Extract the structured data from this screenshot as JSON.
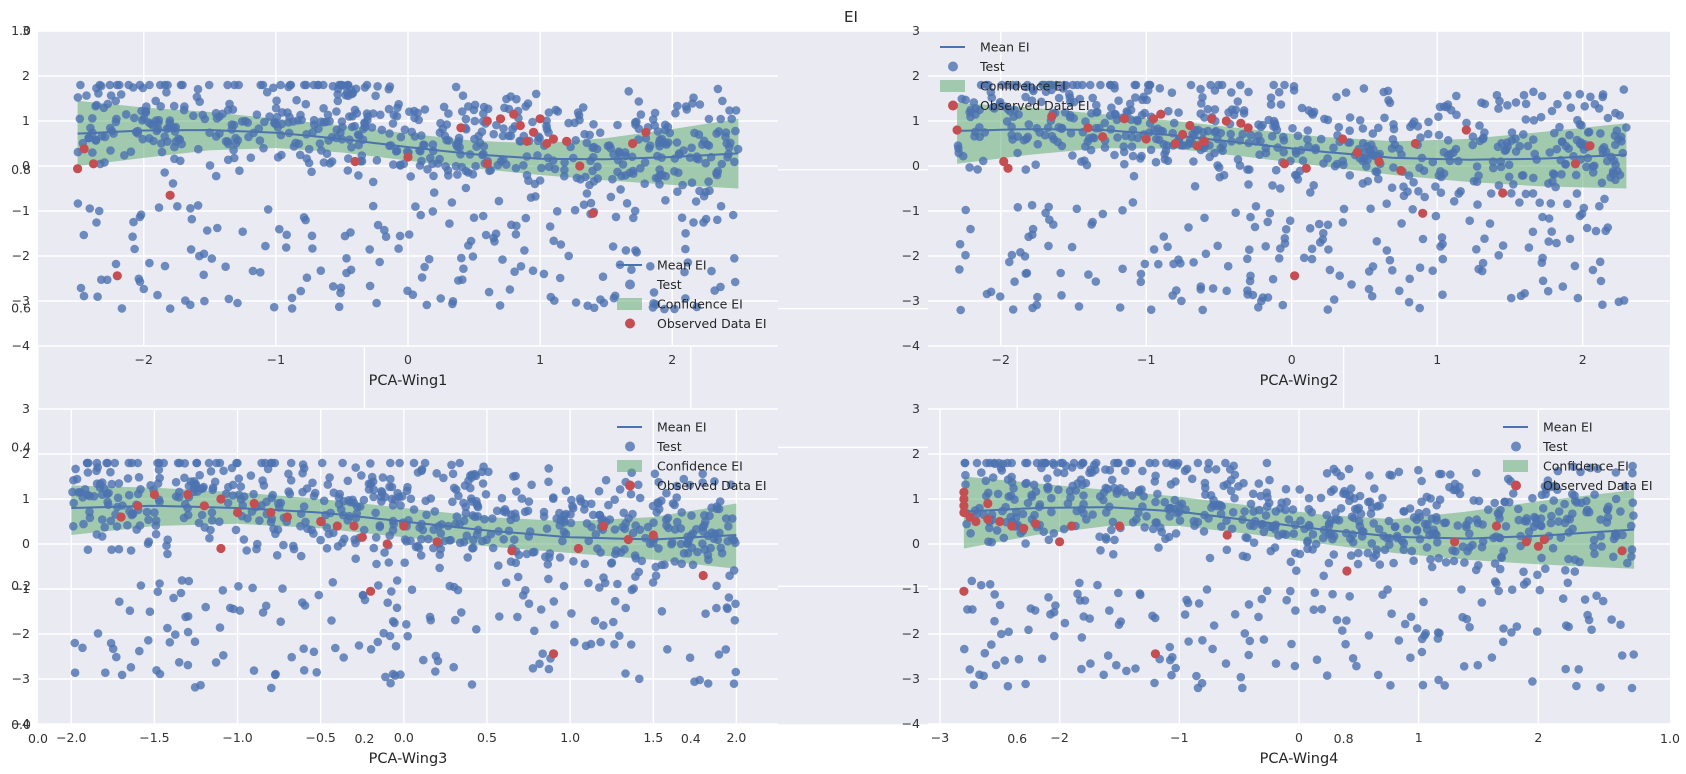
{
  "figure": {
    "title": "EI",
    "legend": [
      "Mean EI",
      "Test",
      "Confidence EI",
      "Observed Data EI"
    ],
    "colors": {
      "background": "#eaeaf2",
      "grid": "#ffffff",
      "mean_line": "#4c72b0",
      "test_points": "#4c72b0",
      "confidence": "#55a868",
      "observed": "#c44e52"
    },
    "background_axes": {
      "x_ticks": [
        "0.0",
        "0.2",
        "0.4",
        "0.6",
        "0.8",
        "1.0"
      ],
      "y_ticks": [
        "0.0",
        "0.2",
        "0.4",
        "0.6",
        "0.8",
        "1.0"
      ]
    }
  },
  "chart_data": [
    {
      "type": "scatter",
      "xlabel": "PCA-Wing1",
      "xlim": [
        -2.8,
        2.8
      ],
      "ylim": [
        -4,
        3
      ],
      "xticks": [
        -2,
        -1,
        0,
        1,
        2
      ],
      "yticks": [
        -4,
        -3,
        -2,
        -1,
        0,
        1,
        2,
        3
      ],
      "legend_position": "lower-right",
      "mean_x": [
        -2.5,
        -2.0,
        -1.5,
        -1.0,
        -0.5,
        0.0,
        0.5,
        1.0,
        1.5,
        2.0,
        2.5
      ],
      "mean_y": [
        0.72,
        0.79,
        0.8,
        0.74,
        0.6,
        0.42,
        0.26,
        0.16,
        0.15,
        0.2,
        0.28
      ],
      "band_lower": [
        0.0,
        0.18,
        0.35,
        0.4,
        0.3,
        0.12,
        -0.05,
        -0.2,
        -0.32,
        -0.42,
        -0.5
      ],
      "band_upper": [
        1.45,
        1.3,
        1.2,
        1.05,
        0.9,
        0.72,
        0.56,
        0.5,
        0.62,
        0.82,
        1.05
      ],
      "test_points": 750,
      "observed": [
        [
          -2.5,
          -0.06
        ],
        [
          -2.45,
          0.38
        ],
        [
          -2.38,
          0.05
        ],
        [
          -2.2,
          -2.44
        ],
        [
          -1.8,
          -0.65
        ],
        [
          -0.4,
          0.1
        ],
        [
          0.0,
          0.2
        ],
        [
          0.4,
          0.85
        ],
        [
          0.6,
          0.05
        ],
        [
          0.6,
          1.0
        ],
        [
          0.7,
          1.05
        ],
        [
          0.8,
          1.15
        ],
        [
          0.85,
          0.9
        ],
        [
          0.9,
          0.55
        ],
        [
          0.95,
          0.75
        ],
        [
          1.0,
          1.05
        ],
        [
          1.05,
          0.5
        ],
        [
          1.1,
          0.6
        ],
        [
          1.2,
          0.55
        ],
        [
          1.3,
          0.0
        ],
        [
          1.4,
          -1.05
        ],
        [
          1.7,
          0.5
        ],
        [
          1.8,
          0.75
        ]
      ]
    },
    {
      "type": "scatter",
      "xlabel": "PCA-Wing2",
      "xlim": [
        -2.5,
        2.6
      ],
      "ylim": [
        -4,
        3
      ],
      "xticks": [
        -2,
        -1,
        0,
        1,
        2
      ],
      "yticks": [
        -4,
        -3,
        -2,
        -1,
        0,
        1,
        2,
        3
      ],
      "legend_position": "upper-left",
      "mean_x": [
        -2.3,
        -1.8,
        -1.3,
        -0.8,
        -0.3,
        0.2,
        0.7,
        1.2,
        1.7,
        2.3
      ],
      "mean_y": [
        0.78,
        0.82,
        0.8,
        0.68,
        0.5,
        0.32,
        0.18,
        0.14,
        0.16,
        0.25
      ],
      "band_lower": [
        0.05,
        0.25,
        0.4,
        0.38,
        0.2,
        0.0,
        -0.2,
        -0.35,
        -0.45,
        -0.5
      ],
      "band_upper": [
        1.4,
        1.3,
        1.15,
        1.0,
        0.82,
        0.65,
        0.55,
        0.6,
        0.75,
        0.95
      ],
      "test_points": 750,
      "observed": [
        [
          -2.3,
          0.8
        ],
        [
          -1.98,
          0.1
        ],
        [
          -1.95,
          -0.05
        ],
        [
          -1.65,
          1.1
        ],
        [
          -1.4,
          0.85
        ],
        [
          -1.3,
          0.65
        ],
        [
          -1.15,
          1.05
        ],
        [
          -1.0,
          0.6
        ],
        [
          -0.95,
          1.05
        ],
        [
          -0.9,
          1.15
        ],
        [
          -0.8,
          0.5
        ],
        [
          -0.75,
          0.7
        ],
        [
          -0.7,
          0.9
        ],
        [
          -0.65,
          0.45
        ],
        [
          -0.6,
          0.55
        ],
        [
          -0.55,
          1.05
        ],
        [
          -0.45,
          1.0
        ],
        [
          -0.35,
          0.95
        ],
        [
          -0.3,
          0.85
        ],
        [
          -0.05,
          0.05
        ],
        [
          0.02,
          -2.44
        ],
        [
          0.1,
          -0.05
        ],
        [
          0.35,
          0.6
        ],
        [
          0.45,
          0.3
        ],
        [
          0.6,
          0.1
        ],
        [
          0.75,
          -0.1
        ],
        [
          0.85,
          0.5
        ],
        [
          0.9,
          -1.05
        ],
        [
          1.2,
          0.8
        ],
        [
          1.45,
          -0.6
        ],
        [
          1.95,
          0.05
        ],
        [
          2.05,
          0.45
        ]
      ]
    },
    {
      "type": "scatter",
      "xlabel": "PCA-Wing3",
      "xlim": [
        -2.2,
        2.25
      ],
      "ylim": [
        -4,
        3
      ],
      "xticks": [
        -2.0,
        -1.5,
        -1.0,
        -0.5,
        0.0,
        0.5,
        1.0,
        1.5,
        2.0
      ],
      "yticks": [
        -4,
        -3,
        -2,
        -1,
        0,
        1,
        2,
        3
      ],
      "legend_position": "upper-right",
      "mean_x": [
        -2.0,
        -1.5,
        -1.0,
        -0.5,
        0.0,
        0.5,
        1.0,
        1.5,
        2.0
      ],
      "mean_y": [
        0.8,
        0.85,
        0.8,
        0.7,
        0.5,
        0.3,
        0.15,
        0.1,
        0.2
      ],
      "band_lower": [
        0.2,
        0.4,
        0.45,
        0.35,
        0.15,
        -0.05,
        -0.2,
        -0.35,
        -0.55
      ],
      "band_upper": [
        1.3,
        1.25,
        1.15,
        1.0,
        0.8,
        0.6,
        0.5,
        0.6,
        0.9
      ],
      "test_points": 750,
      "observed": [
        [
          -1.7,
          0.6
        ],
        [
          -1.6,
          0.85
        ],
        [
          -1.5,
          1.1
        ],
        [
          -1.3,
          1.1
        ],
        [
          -1.2,
          0.85
        ],
        [
          -1.1,
          1.0
        ],
        [
          -1.1,
          -0.1
        ],
        [
          -1.0,
          0.7
        ],
        [
          -0.9,
          0.9
        ],
        [
          -0.8,
          0.7
        ],
        [
          -0.7,
          0.6
        ],
        [
          -0.5,
          0.5
        ],
        [
          -0.4,
          0.4
        ],
        [
          -0.3,
          0.4
        ],
        [
          -0.25,
          0.15
        ],
        [
          -0.2,
          -1.05
        ],
        [
          -0.1,
          0.0
        ],
        [
          0.0,
          0.4
        ],
        [
          0.2,
          0.05
        ],
        [
          0.65,
          -0.15
        ],
        [
          0.9,
          -2.44
        ],
        [
          1.05,
          -0.1
        ],
        [
          1.2,
          0.4
        ],
        [
          1.35,
          0.1
        ],
        [
          1.5,
          0.2
        ],
        [
          1.8,
          -0.7
        ]
      ]
    },
    {
      "type": "scatter",
      "xlabel": "PCA-Wing4",
      "xlim": [
        -3.1,
        3.1
      ],
      "ylim": [
        -4,
        3
      ],
      "xticks": [
        -3,
        -2,
        -1,
        0,
        1,
        2
      ],
      "yticks": [
        -4,
        -3,
        -2,
        -1,
        0,
        1,
        2,
        3
      ],
      "legend_position": "upper-right",
      "mean_x": [
        -2.8,
        -2.2,
        -1.6,
        -1.0,
        -0.4,
        0.2,
        0.8,
        1.4,
        2.0,
        2.8
      ],
      "mean_y": [
        0.72,
        0.8,
        0.82,
        0.72,
        0.52,
        0.32,
        0.16,
        0.12,
        0.18,
        0.32
      ],
      "band_lower": [
        -0.1,
        0.2,
        0.4,
        0.4,
        0.22,
        0.0,
        -0.2,
        -0.35,
        -0.45,
        -0.55
      ],
      "band_upper": [
        1.5,
        1.35,
        1.2,
        1.05,
        0.85,
        0.65,
        0.55,
        0.72,
        0.95,
        1.2
      ],
      "test_points": 750,
      "observed": [
        [
          -2.8,
          1.15
        ],
        [
          -2.8,
          1.0
        ],
        [
          -2.8,
          0.85
        ],
        [
          -2.8,
          0.7
        ],
        [
          -2.8,
          -1.05
        ],
        [
          -2.75,
          0.6
        ],
        [
          -2.7,
          0.5
        ],
        [
          -2.6,
          0.9
        ],
        [
          -2.6,
          0.55
        ],
        [
          -2.5,
          0.5
        ],
        [
          -2.4,
          0.4
        ],
        [
          -2.3,
          0.35
        ],
        [
          -2.2,
          0.45
        ],
        [
          -2.0,
          0.05
        ],
        [
          -1.9,
          0.4
        ],
        [
          -1.5,
          0.4
        ],
        [
          -1.2,
          -2.44
        ],
        [
          -0.6,
          0.2
        ],
        [
          0.4,
          -0.6
        ],
        [
          1.3,
          0.05
        ],
        [
          1.65,
          0.4
        ],
        [
          1.9,
          0.05
        ],
        [
          2.0,
          -0.05
        ],
        [
          2.05,
          0.1
        ],
        [
          2.7,
          -0.15
        ]
      ]
    }
  ]
}
